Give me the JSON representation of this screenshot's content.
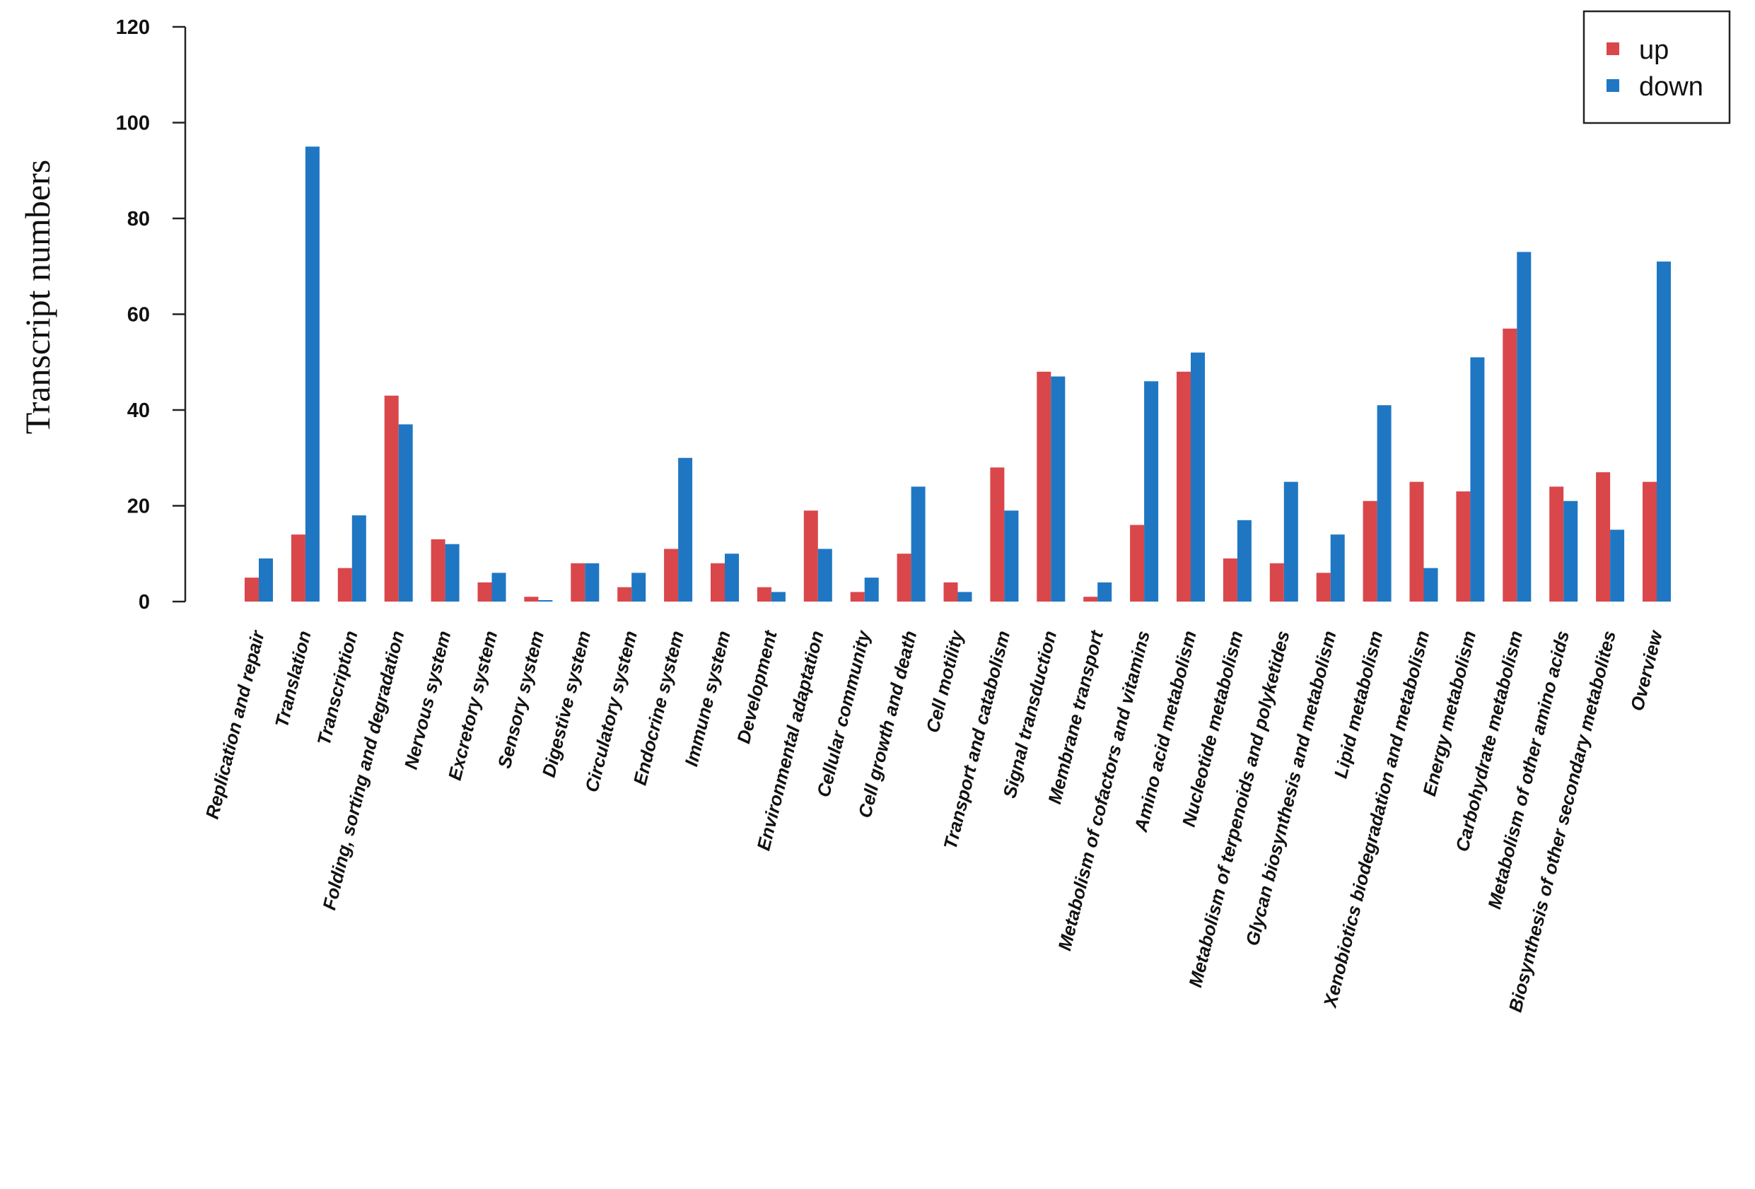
{
  "chart_data": {
    "type": "bar",
    "title": "",
    "xlabel": "",
    "ylabel": "Transcript  numbers",
    "ylim": [
      0,
      120
    ],
    "yticks": [
      0,
      20,
      40,
      60,
      80,
      100,
      120
    ],
    "grid": false,
    "legend_position": "top-right",
    "categories": [
      "Replication and repair",
      "Translation",
      "Transcription",
      "Folding, sorting and degradation",
      "Nervous system",
      "Excretory system",
      "Sensory system",
      "Digestive system",
      "Circulatory system",
      "Endocrine system",
      "Immune system",
      "Development",
      "Environmental adaptation",
      "Cellular community",
      "Cell growth and death",
      "Cell motility",
      "Transport and catabolism",
      "Signal transduction",
      "Membrane transport",
      "Metabolism of cofactors and vitamins",
      "Amino acid metabolism",
      "Nucleotide metabolism",
      "Metabolism of terpenoids and polyketides",
      "Glycan biosynthesis and metabolism",
      "Lipid metabolism",
      "Xenobiotics biodegradation and metabolism",
      "Energy metabolism",
      "Carbohydrate metabolism",
      "Metabolism of other amino acids",
      "Biosynthesis of other secondary metabolites",
      "Overview"
    ],
    "series": [
      {
        "name": "up",
        "color": "#d9474b",
        "values": [
          5,
          14,
          7,
          43,
          13,
          4,
          1,
          8,
          3,
          11,
          8,
          3,
          19,
          2,
          10,
          4,
          28,
          48,
          1,
          16,
          48,
          9,
          8,
          6,
          21,
          25,
          23,
          57,
          24,
          27,
          25
        ]
      },
      {
        "name": "down",
        "color": "#1f77c3",
        "values": [
          9,
          95,
          18,
          37,
          12,
          6,
          0.3,
          8,
          6,
          30,
          10,
          2,
          11,
          5,
          24,
          2,
          19,
          47,
          4,
          46,
          52,
          17,
          25,
          14,
          41,
          7,
          51,
          73,
          21,
          15,
          71
        ]
      }
    ]
  }
}
